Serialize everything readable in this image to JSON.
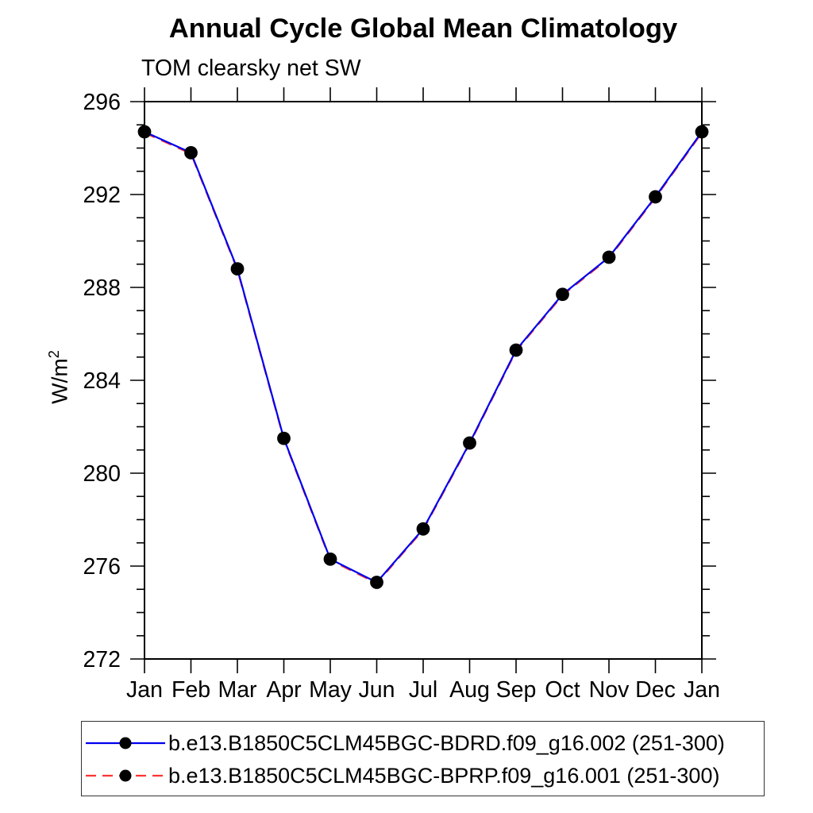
{
  "chart_data": {
    "type": "line",
    "title": "Annual Cycle Global Mean Climatology",
    "subtitle": "TOM clearsky net SW",
    "ylabel": "W/m²",
    "ylabel_parts": {
      "base": "W/m",
      "exponent": "2"
    },
    "xlabel": "",
    "categories": [
      "Jan",
      "Feb",
      "Mar",
      "Apr",
      "May",
      "Jun",
      "Jul",
      "Aug",
      "Sep",
      "Oct",
      "Nov",
      "Dec",
      "Jan"
    ],
    "ylim": [
      272,
      296
    ],
    "ytick_major_step": 4,
    "ytick_minor_step": 1,
    "ytick_labels": [
      "272",
      "276",
      "280",
      "284",
      "288",
      "292",
      "296"
    ],
    "grid": false,
    "legend_position": "bottom-box",
    "frame": "full-box-outward-ticks",
    "series": [
      {
        "label": "b.e13.B1850C5CLM45BGC-BDRD.f09_g16.002 (251-300)",
        "short": "bdrd",
        "color": "#0000ee",
        "line_style": "solid",
        "marker": "filled-circle",
        "marker_color": "#000000",
        "values": [
          294.7,
          293.8,
          288.8,
          281.5,
          276.3,
          275.3,
          277.6,
          281.3,
          285.3,
          287.7,
          289.3,
          291.9,
          294.7
        ]
      },
      {
        "label": "b.e13.B1850C5CLM45BGC-BPRP.f09_g16.001 (251-300)",
        "short": "bprp",
        "color": "#ff3333",
        "line_style": "dashed",
        "marker": "filled-circle",
        "marker_color": "#000000",
        "values": [
          294.66,
          293.76,
          288.76,
          281.46,
          276.26,
          275.26,
          277.56,
          281.26,
          285.26,
          287.66,
          289.26,
          291.86,
          294.66
        ]
      }
    ]
  }
}
